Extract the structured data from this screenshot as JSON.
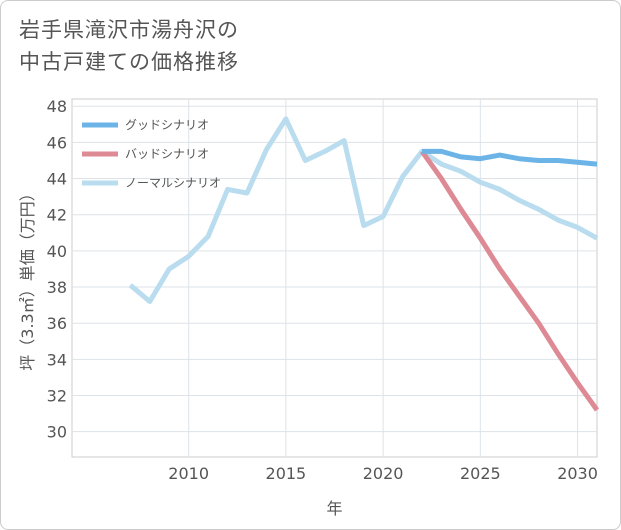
{
  "title_line1": "岩手県滝沢市湯舟沢の",
  "title_line2": "中古戸建ての価格推移",
  "chart_data": {
    "type": "line",
    "xlabel": "年",
    "ylabel": "坪（3.3㎡）単価（万円）",
    "xlim": [
      2004,
      2031
    ],
    "ylim": [
      28.6,
      48.4
    ],
    "x_ticks": [
      2010,
      2015,
      2020,
      2025,
      2030
    ],
    "y_ticks": [
      30,
      32,
      34,
      36,
      38,
      40,
      42,
      44,
      46,
      48
    ],
    "grid": true,
    "legend_position": "top-left",
    "series": [
      {
        "name": "グッドシナリオ",
        "color": "#6cb4e8",
        "x": [
          2022,
          2023,
          2024,
          2025,
          2026,
          2027,
          2028,
          2029,
          2030,
          2031
        ],
        "values": [
          45.5,
          45.5,
          45.2,
          45.1,
          45.3,
          45.1,
          45.0,
          45.0,
          44.9,
          44.8
        ]
      },
      {
        "name": "バッドシナリオ",
        "color": "#de8a95",
        "x": [
          2022,
          2023,
          2024,
          2025,
          2026,
          2027,
          2028,
          2029,
          2030,
          2031
        ],
        "values": [
          45.5,
          44.0,
          42.3,
          40.7,
          39.0,
          37.5,
          36.0,
          34.3,
          32.7,
          31.2
        ]
      },
      {
        "name": "ノーマルシナリオ",
        "color": "#b9dcef",
        "x": [
          2007,
          2008,
          2009,
          2010,
          2011,
          2012,
          2013,
          2014,
          2015,
          2016,
          2017,
          2018,
          2019,
          2020,
          2021,
          2022,
          2023,
          2024,
          2025,
          2026,
          2027,
          2028,
          2029,
          2030,
          2031
        ],
        "values": [
          38.1,
          37.2,
          39.0,
          39.7,
          40.8,
          43.4,
          43.2,
          45.6,
          47.3,
          45.0,
          45.5,
          46.1,
          41.4,
          41.9,
          44.1,
          45.5,
          44.8,
          44.4,
          43.8,
          43.4,
          42.8,
          42.3,
          41.7,
          41.3,
          40.7
        ]
      }
    ]
  }
}
